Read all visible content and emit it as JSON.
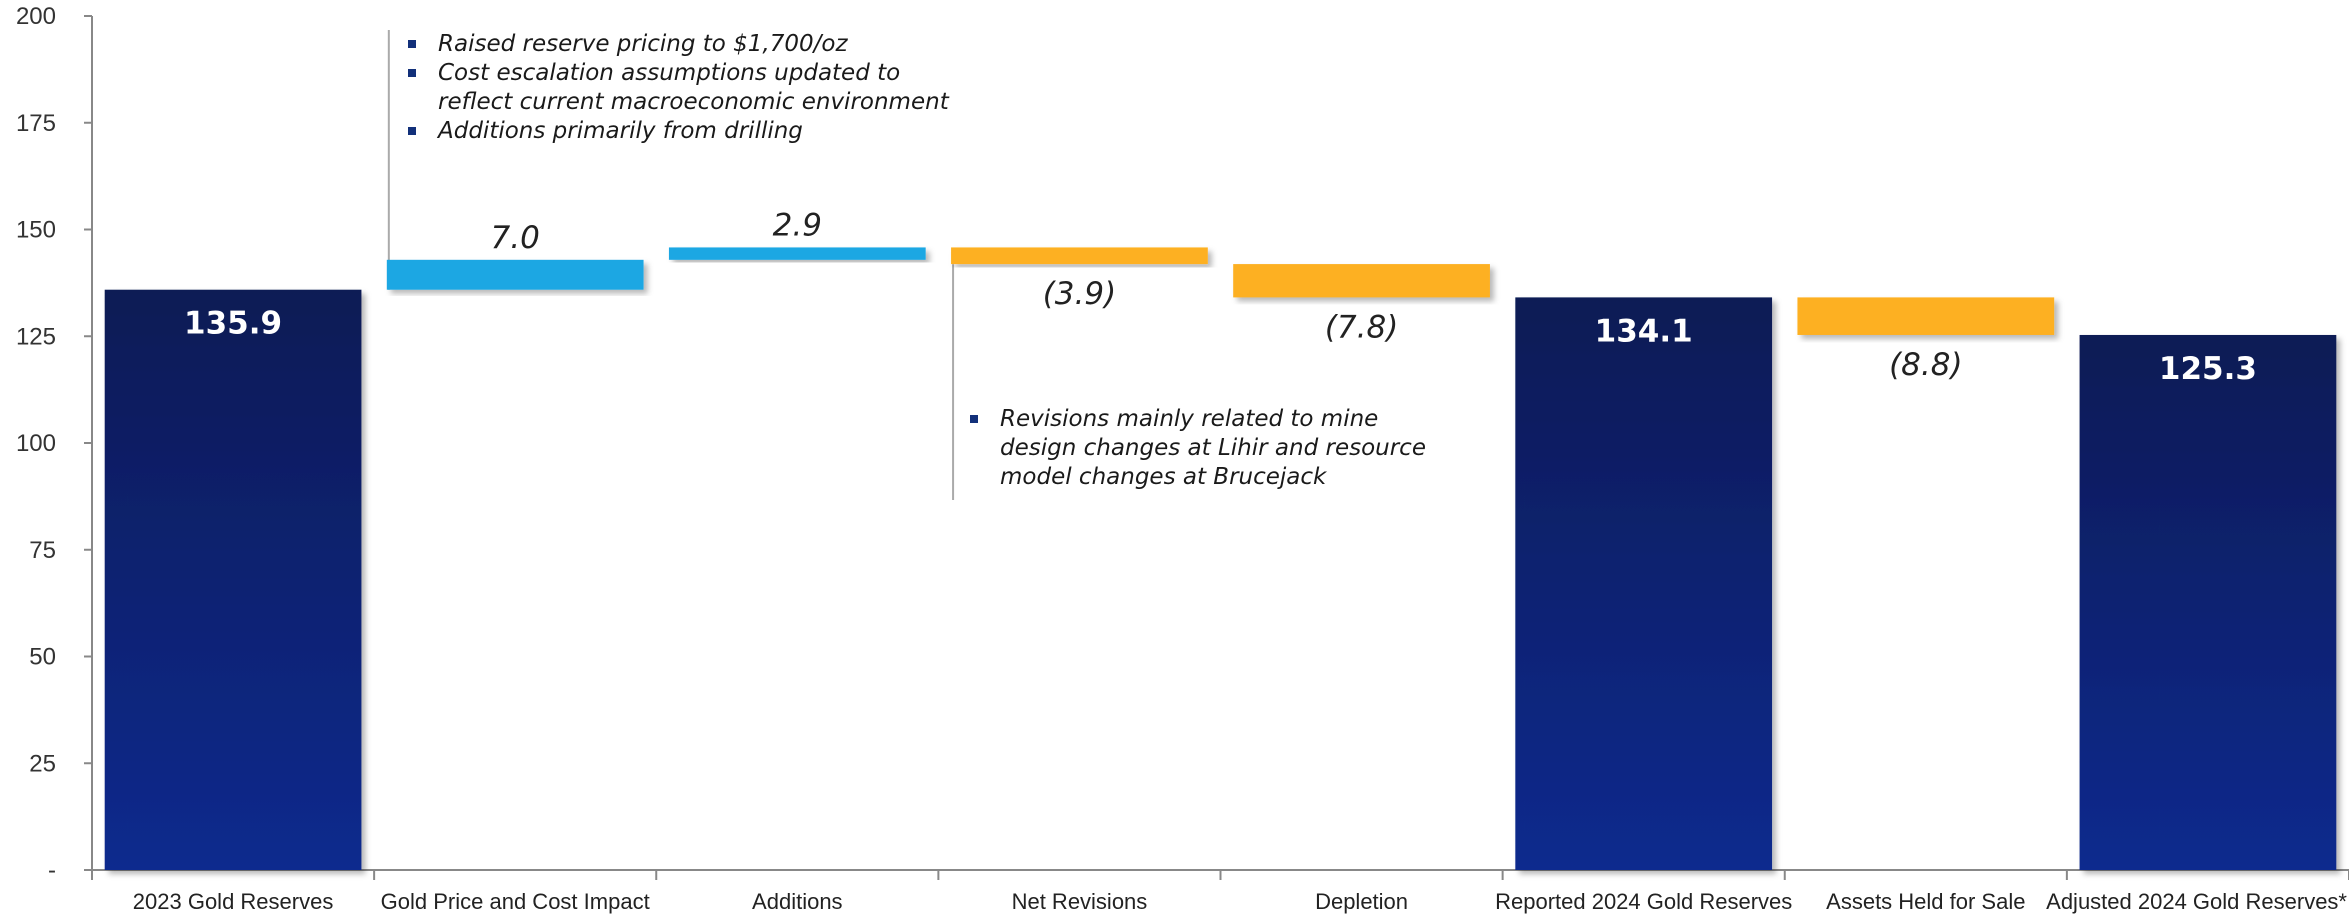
{
  "chart_data": {
    "type": "bar",
    "subtype": "waterfall",
    "ylim": [
      0,
      200
    ],
    "yticks": [
      0,
      25,
      50,
      75,
      100,
      125,
      150,
      175,
      200
    ],
    "ytick_labels": [
      "-",
      "25",
      "50",
      "75",
      "100",
      "125",
      "150",
      "175",
      "200"
    ],
    "categories": [
      "2023 Gold Reserves",
      "Gold Price and Cost Impact",
      "Additions",
      "Net Revisions",
      "Depletion",
      "Reported 2024 Gold Reserves",
      "Assets Held for Sale",
      "Adjusted 2024 Gold Reserves*"
    ],
    "bars": [
      {
        "kind": "total",
        "start": 0,
        "end": 135.9,
        "label": "135.9"
      },
      {
        "kind": "increase",
        "start": 135.9,
        "end": 142.9,
        "label": "7.0"
      },
      {
        "kind": "increase",
        "start": 142.9,
        "end": 145.8,
        "label": "2.9"
      },
      {
        "kind": "decrease",
        "start": 145.8,
        "end": 141.9,
        "label": "(3.9)"
      },
      {
        "kind": "decrease",
        "start": 141.9,
        "end": 134.1,
        "label": "(7.8)"
      },
      {
        "kind": "total",
        "start": 0,
        "end": 134.1,
        "label": "134.1"
      },
      {
        "kind": "decrease",
        "start": 134.1,
        "end": 125.3,
        "label": "(8.8)"
      },
      {
        "kind": "total",
        "start": 0,
        "end": 125.3,
        "label": "125.3"
      }
    ],
    "colors": {
      "total_top": "#0b1a55",
      "total_bottom": "#0f2a8e",
      "increase": "#1ba7e3",
      "decrease": "#fdb022",
      "axis": "#888888"
    },
    "annotations": [
      {
        "bullets": [
          "Raised reserve pricing to $1,700/oz",
          "Cost escalation assumptions updated to reflect current macroeconomic environment",
          "Additions primarily from drilling"
        ]
      },
      {
        "bullets": [
          "Revisions mainly related to mine design changes at Lihir and resource model changes at Brucejack"
        ]
      }
    ]
  }
}
